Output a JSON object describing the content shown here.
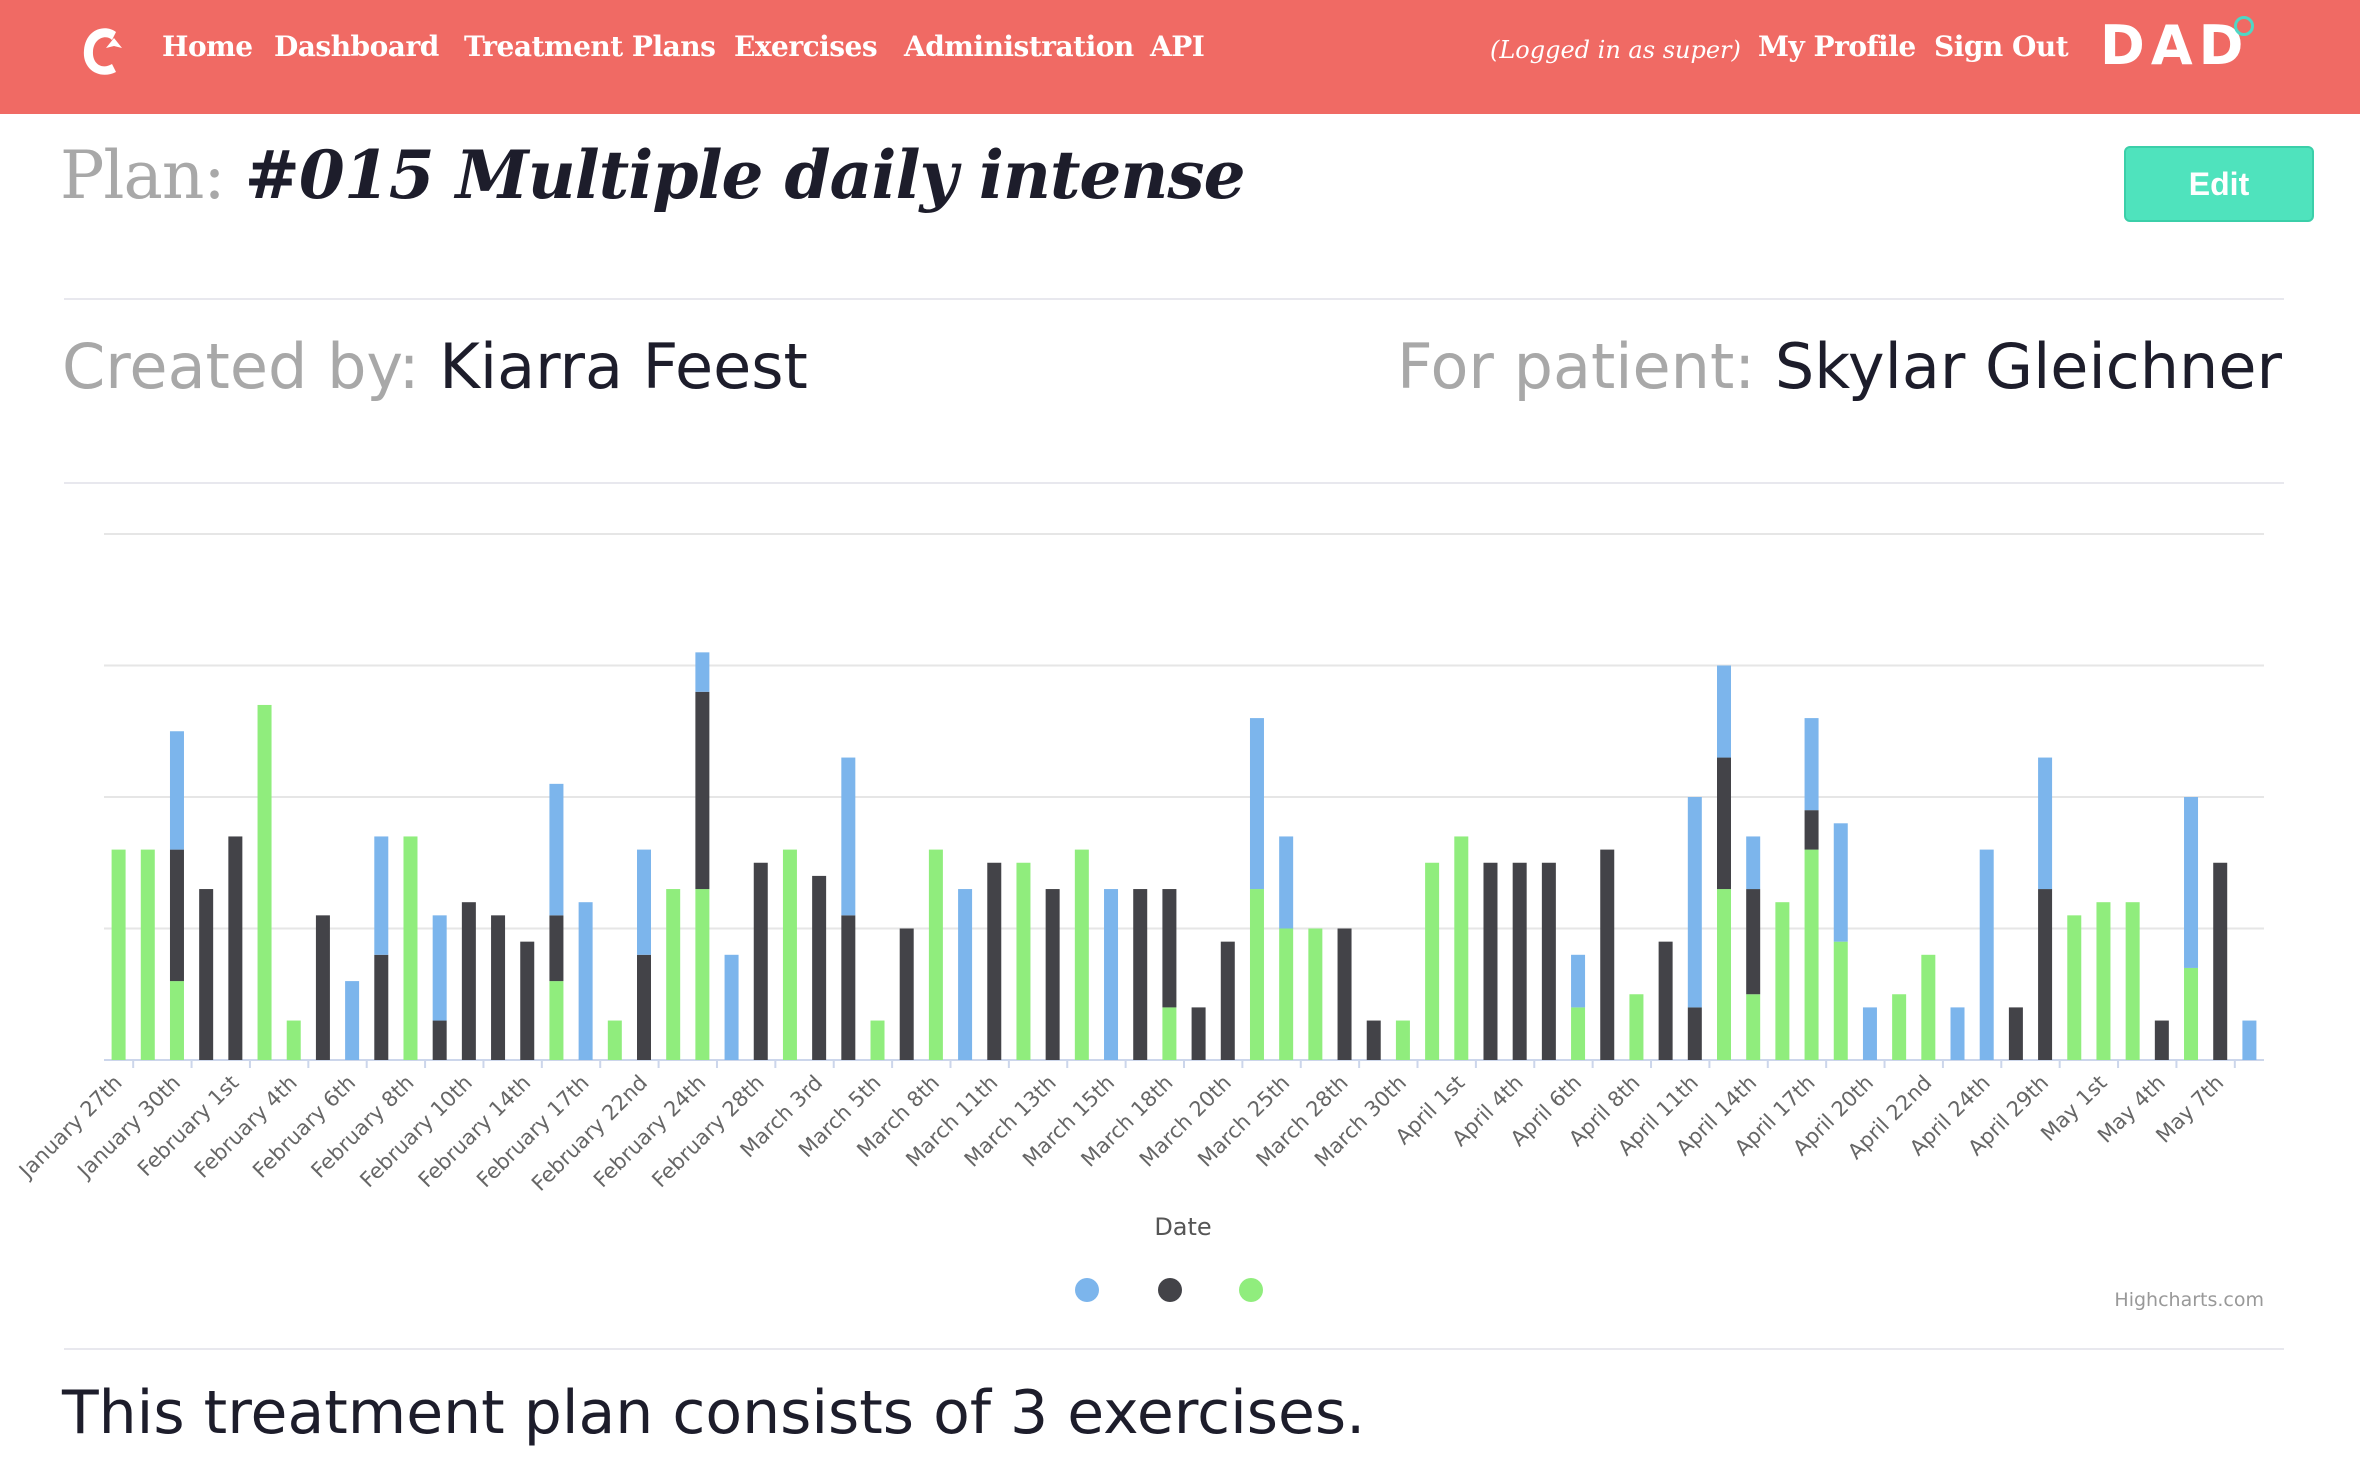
{
  "nav": {
    "logo_icon": "brand-logo-icon",
    "links": [
      "Home",
      "Dashboard",
      "Treatment Plans",
      "Exercises",
      "Administration",
      "API"
    ],
    "logged_in": "(Logged in as super)",
    "right_links": [
      "My Profile",
      "Sign Out"
    ],
    "brand": "DAD"
  },
  "plan": {
    "prefix": "Plan:",
    "name": "#015 Multiple daily intense",
    "edit_label": "Edit",
    "created_by_label": "Created by:",
    "created_by": "Kiarra Feest",
    "patient_label": "For patient:",
    "patient": "Skylar Gleichner",
    "summary": "This treatment plan consists of 3 exercises."
  },
  "colors": {
    "nav_bg": "#f06a64",
    "edit_button": "#4fe3bd",
    "series_blue": "#7cb5ec",
    "series_dark": "#434348",
    "series_green": "#90ed7d"
  },
  "chart_data": {
    "type": "bar",
    "stacked": true,
    "xlabel": "Date",
    "ylabel": "",
    "legend": "bottom-center",
    "grid": true,
    "credits": "Highcharts.com",
    "categories": [
      "January 27th",
      "January 30th",
      "February 1st",
      "February 4th",
      "February 6th",
      "February 8th",
      "February 10th",
      "February 14th",
      "February 17th",
      "February 22nd",
      "February 24th",
      "February 28th",
      "March 3rd",
      "March 5th",
      "March 8th",
      "March 11th",
      "March 13th",
      "March 15th",
      "March 18th",
      "March 20th",
      "March 25th",
      "March 28th",
      "March 30th",
      "April 1st",
      "April 4th",
      "April 6th",
      "April 8th",
      "April 11th",
      "April 14th",
      "April 17th",
      "April 20th",
      "April 22nd",
      "April 24th",
      "April 29th",
      "May 1st",
      "May 4th",
      "May 7th"
    ],
    "bars": [
      [
        0,
        0,
        16
      ],
      [
        0,
        0,
        16
      ],
      [
        9,
        10,
        6
      ],
      [
        0,
        13,
        0
      ],
      [
        0,
        17,
        0
      ],
      [
        0,
        0,
        27
      ],
      [
        0,
        0,
        3
      ],
      [
        0,
        11,
        0
      ],
      [
        6,
        0,
        0
      ],
      [
        9,
        8,
        0
      ],
      [
        0,
        0,
        17
      ],
      [
        8,
        3,
        0
      ],
      [
        0,
        12,
        0
      ],
      [
        0,
        11,
        0
      ],
      [
        0,
        9,
        0
      ],
      [
        10,
        5,
        6
      ],
      [
        12,
        0,
        0
      ],
      [
        0,
        0,
        3
      ],
      [
        8,
        8,
        0
      ],
      [
        0,
        0,
        13
      ],
      [
        3,
        15,
        13
      ],
      [
        8,
        0,
        0
      ],
      [
        0,
        15,
        0
      ],
      [
        0,
        0,
        16
      ],
      [
        0,
        14,
        0
      ],
      [
        12,
        11,
        0
      ],
      [
        0,
        0,
        3
      ],
      [
        0,
        10,
        0
      ],
      [
        0,
        0,
        16
      ],
      [
        13,
        0,
        0
      ],
      [
        0,
        15,
        0
      ],
      [
        0,
        0,
        15
      ],
      [
        0,
        13,
        0
      ],
      [
        0,
        0,
        16
      ],
      [
        13,
        0,
        0
      ],
      [
        0,
        13,
        0
      ],
      [
        0,
        9,
        4
      ],
      [
        0,
        4,
        0
      ],
      [
        0,
        9,
        0
      ],
      [
        13,
        0,
        13
      ],
      [
        7,
        0,
        10
      ],
      [
        0,
        0,
        10
      ],
      [
        0,
        10,
        0
      ],
      [
        0,
        3,
        0
      ],
      [
        0,
        0,
        3
      ],
      [
        0,
        0,
        15
      ],
      [
        0,
        0,
        17
      ],
      [
        0,
        15,
        0
      ],
      [
        0,
        15,
        0
      ],
      [
        0,
        15,
        0
      ],
      [
        4,
        0,
        4
      ],
      [
        0,
        16,
        0
      ],
      [
        0,
        0,
        5
      ],
      [
        0,
        9,
        0
      ],
      [
        16,
        4,
        0
      ],
      [
        7,
        10,
        13
      ],
      [
        4,
        8,
        5
      ],
      [
        0,
        0,
        12
      ],
      [
        7,
        3,
        16
      ],
      [
        9,
        0,
        9
      ],
      [
        4,
        0,
        0
      ],
      [
        0,
        0,
        5
      ],
      [
        0,
        0,
        8
      ],
      [
        4,
        0,
        0
      ],
      [
        16,
        0,
        0
      ],
      [
        0,
        4,
        0
      ],
      [
        10,
        13,
        0
      ],
      [
        0,
        0,
        11
      ],
      [
        0,
        0,
        12
      ],
      [
        0,
        0,
        12
      ],
      [
        0,
        3,
        0
      ],
      [
        13,
        0,
        7
      ],
      [
        0,
        15,
        0
      ],
      [
        3,
        0,
        0
      ]
    ]
  }
}
